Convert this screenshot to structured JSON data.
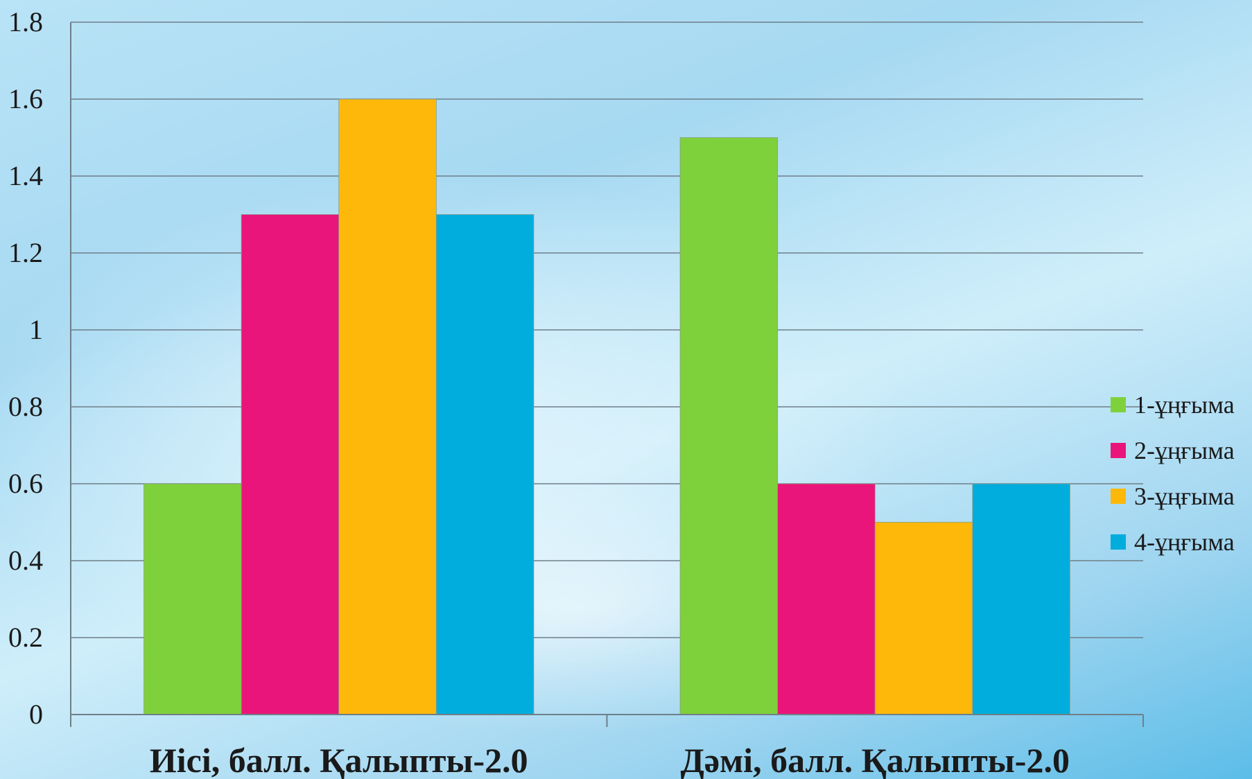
{
  "chart_data": {
    "type": "bar",
    "categories": [
      "Иісі, балл. Қалыпты-2.0",
      "Дәмі, балл. Қалыпты-2.0"
    ],
    "series": [
      {
        "name": "1-ұңғыма",
        "values": [
          0.6,
          1.5
        ],
        "color": "#7fd13b"
      },
      {
        "name": "2-ұңғыма",
        "values": [
          1.3,
          0.6
        ],
        "color": "#ea157a"
      },
      {
        "name": "3-ұңғыма",
        "values": [
          1.6,
          0.5
        ],
        "color": "#feb80a"
      },
      {
        "name": "4-ұңғыма",
        "values": [
          1.3,
          0.6
        ],
        "color": "#00addc"
      }
    ],
    "y_ticks": [
      "0",
      "0.2",
      "0.4",
      "0.6",
      "0.8",
      "1",
      "1.2",
      "1.4",
      "1.6",
      "1.8"
    ],
    "ylim": [
      0,
      1.8
    ],
    "grid": true,
    "legend_position": "right"
  }
}
